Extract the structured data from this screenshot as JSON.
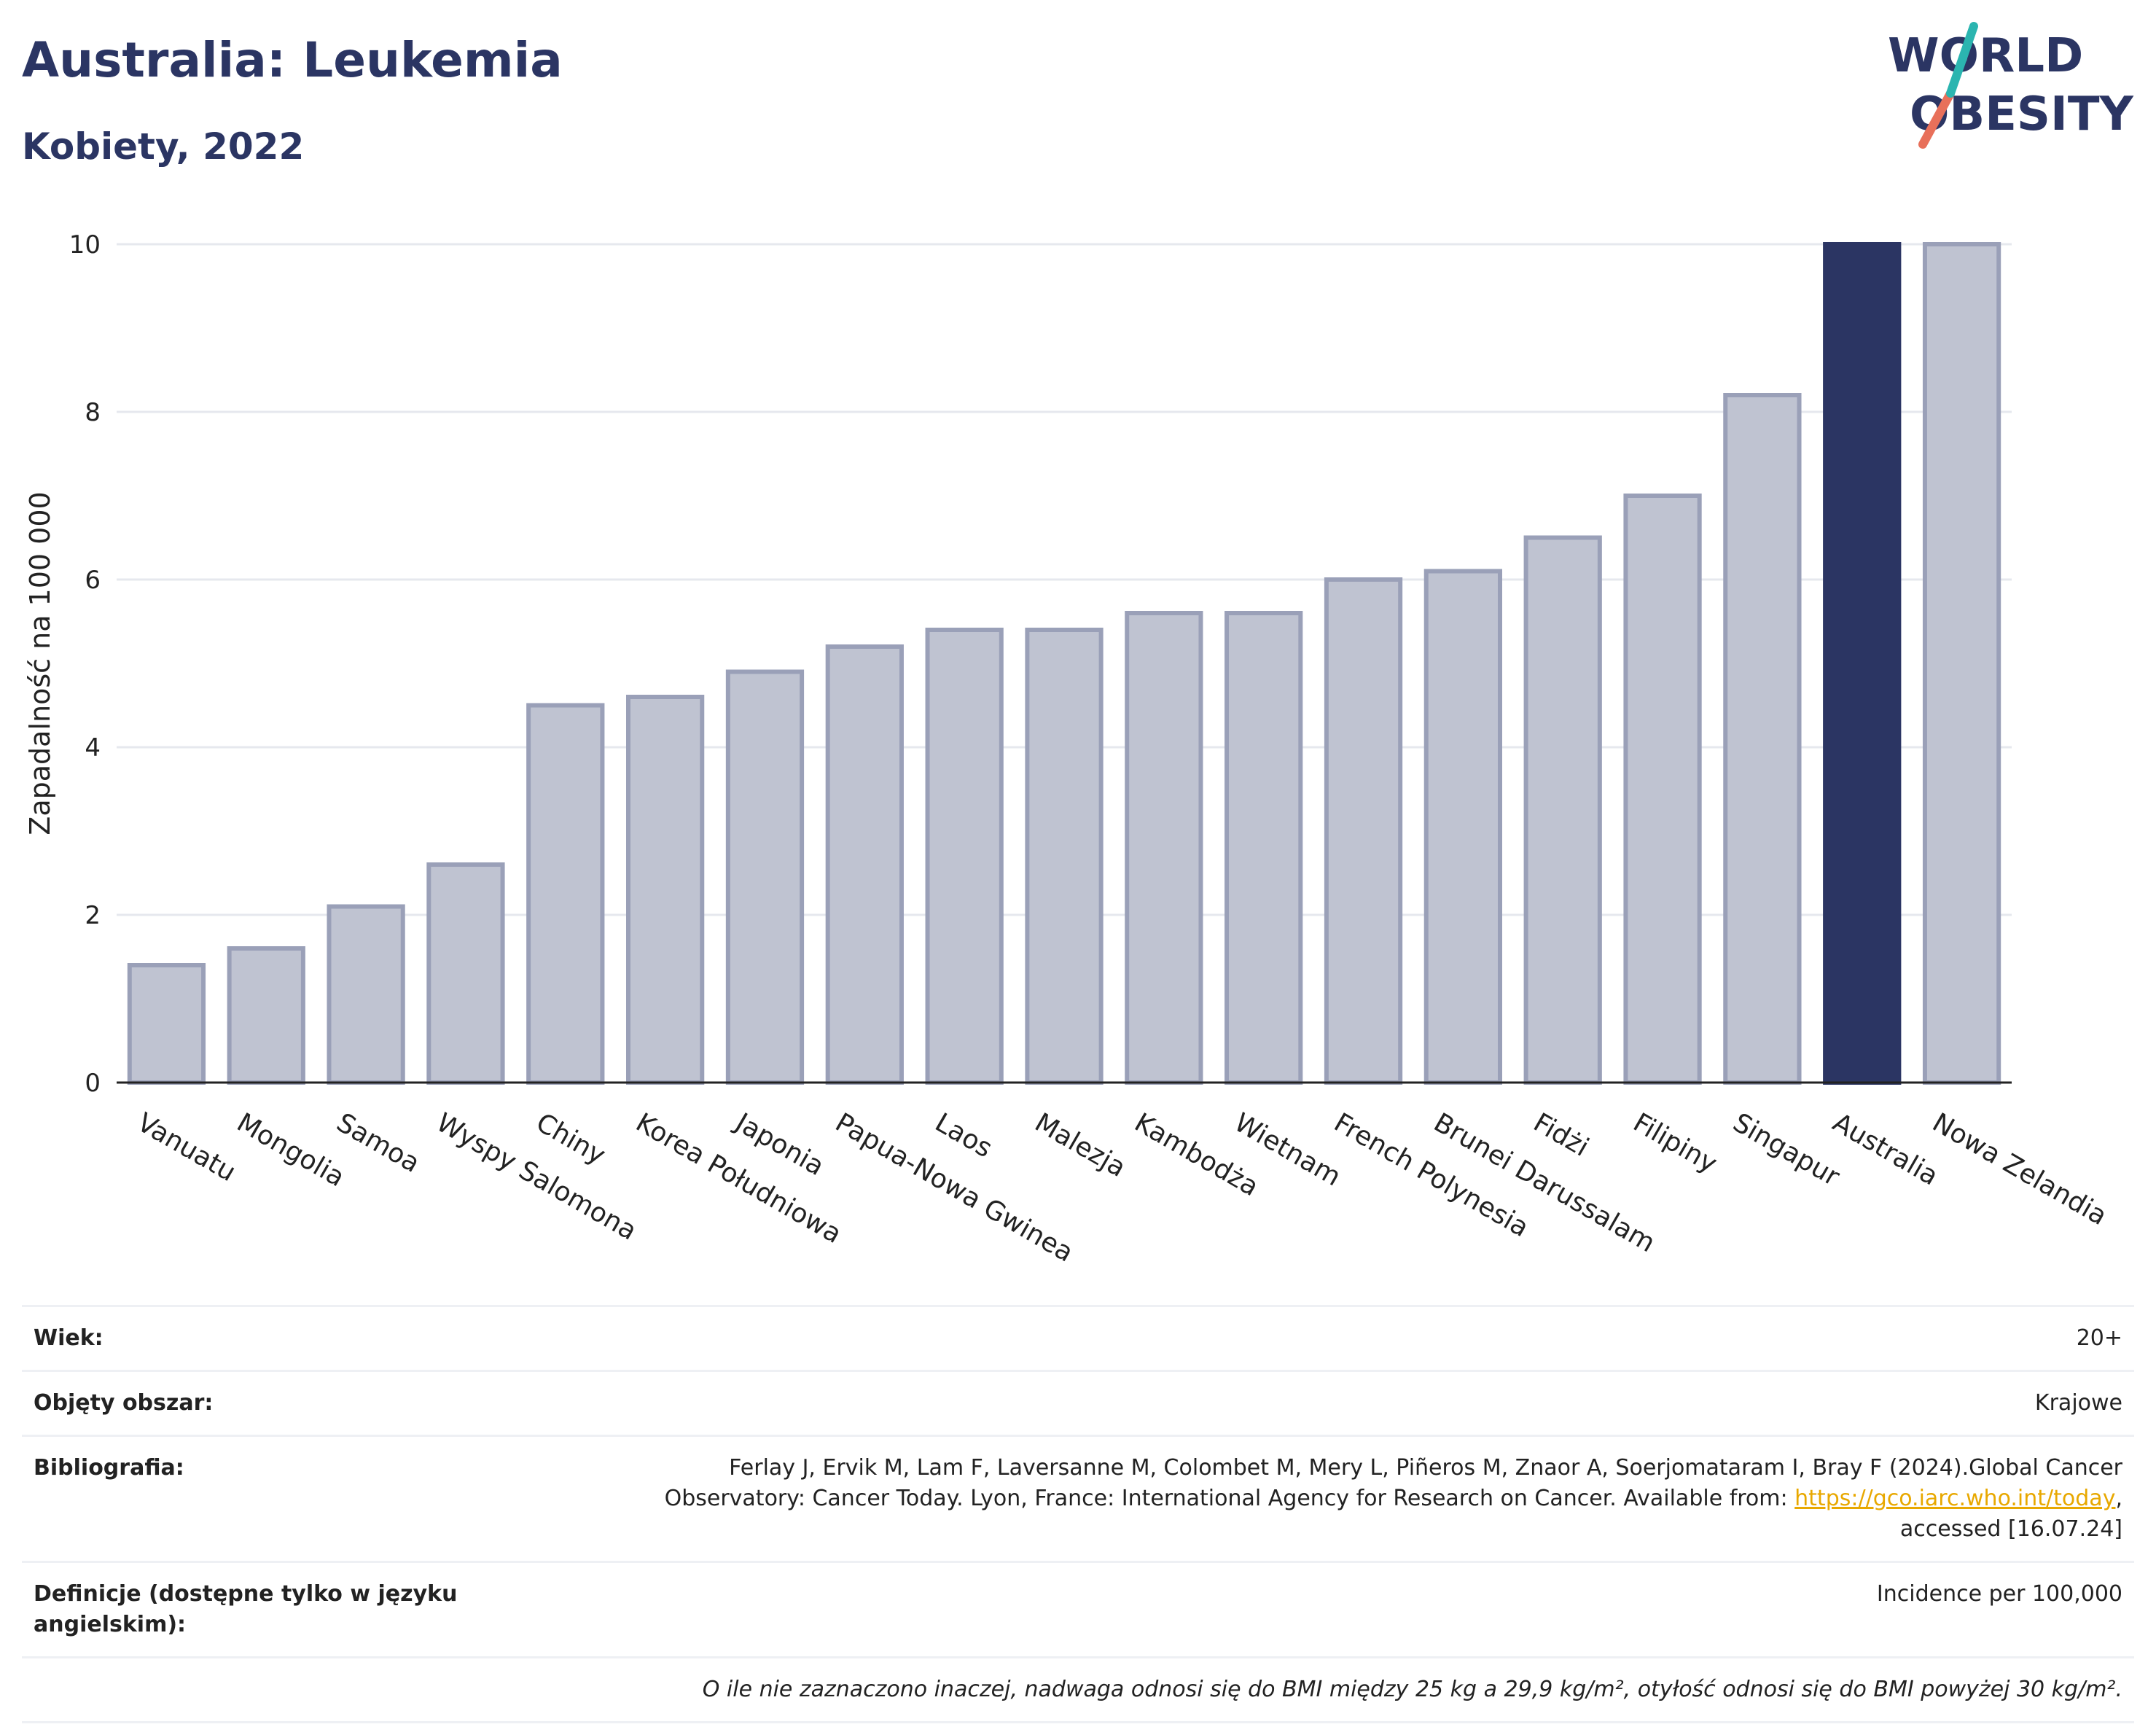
{
  "title": "Australia: Leukemia",
  "subtitle": "Kobiety, 2022",
  "logo": {
    "line1": "WORLD",
    "line2": "OBESITY"
  },
  "colors": {
    "highlight": "#2b3563",
    "bar": "#bfc3d1",
    "bar_stroke": "#9aa0b8",
    "text": "#2b3563"
  },
  "chart_data": {
    "type": "bar",
    "ylabel": "Zapadalność na 100 000",
    "ylim": [
      0,
      10
    ],
    "yticks": [
      0,
      2,
      4,
      6,
      8,
      10
    ],
    "grid": true,
    "highlight": "Australia",
    "categories": [
      "Vanuatu",
      "Mongolia",
      "Samoa",
      "Wyspy Salomona",
      "Chiny",
      "Korea Południowa",
      "Japonia",
      "Papua-Nowa Gwinea",
      "Laos",
      "Malezja",
      "Kambodża",
      "Wietnam",
      "French Polynesia",
      "Brunei Darussalam",
      "Fidżi",
      "Filipiny",
      "Singapur",
      "Australia",
      "Nowa Zelandia"
    ],
    "values": [
      1.4,
      1.6,
      2.1,
      2.6,
      4.5,
      4.6,
      4.9,
      5.2,
      5.4,
      5.4,
      5.6,
      5.6,
      6.0,
      6.1,
      6.5,
      7.0,
      8.2,
      10.0,
      10.0
    ]
  },
  "meta": {
    "age_label": "Wiek:",
    "age_value": "20+",
    "area_label": "Objęty obszar:",
    "area_value": "Krajowe",
    "bib_label": "Bibliografia:",
    "bib_line1": "Ferlay J, Ervik M, Lam F, Laversanne M, Colombet M, Mery L, Piñeros M, Znaor A, Soerjomataram I, Bray F (2024).Global Cancer",
    "bib_line2": "Observatory: Cancer Today. Lyon, France: International Agency for Research on Cancer. Available from: ",
    "bib_link": "https://gco.iarc.who.int/today",
    "bib_line2_end": ",",
    "bib_line3": "accessed [16.07.24]",
    "def_label": "Definicje (dostępne tylko w języku angielskim):",
    "def_value": "Incidence per 100,000",
    "note": "O ile nie zaznaczono inaczej, nadwaga odnosi się do BMI między 25 kg a 29,9 kg/m², otyłość odnosi się do BMI powyżej 30 kg/m²."
  }
}
